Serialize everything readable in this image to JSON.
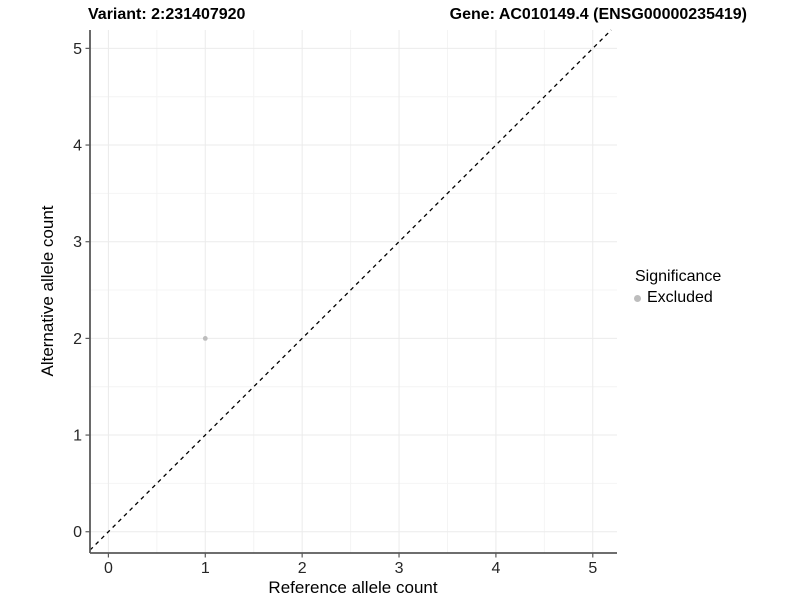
{
  "chart_data": {
    "type": "scatter",
    "title_left": "Variant: 2:231407920",
    "title_right": "Gene: AC010149.4 (ENSG00000235419)",
    "xlabel": "Reference allele count",
    "ylabel": "Alternative allele count",
    "xlim": [
      -0.19,
      5.25
    ],
    "ylim": [
      -0.22,
      5.19
    ],
    "xticks": [
      0,
      1,
      2,
      3,
      4,
      5
    ],
    "yticks": [
      0,
      1,
      2,
      3,
      4,
      5
    ],
    "minorticks": [
      0.5,
      1.5,
      2.5,
      3.5,
      4.5
    ],
    "grid": {
      "major_color": "#ebebeb",
      "minor_color": "#f4f4f4",
      "on": true
    },
    "series": [
      {
        "name": "Excluded",
        "color": "#bdbdbd",
        "points": [
          {
            "x": 1,
            "y": 2
          }
        ]
      }
    ],
    "reference_line": {
      "kind": "identity",
      "linestyle": "dashed",
      "color": "#000000"
    },
    "legend": {
      "title": "Significance",
      "position": "right",
      "entries": [
        {
          "label": "Excluded",
          "color": "#bdbdbd"
        }
      ]
    },
    "style": {
      "axis_color": "#595959",
      "tick_label_color": "#262626",
      "background": "#ffffff"
    }
  }
}
